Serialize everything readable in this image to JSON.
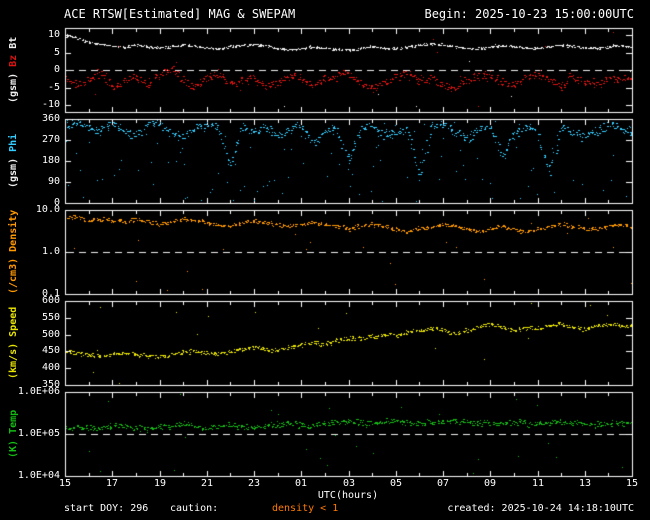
{
  "header": {
    "title": "ACE RTSW[Estimated] MAG & SWEPAM",
    "begin": "Begin: 2025-10-23 15:00:00UTC"
  },
  "footer": {
    "start_doy": "start DOY: 296",
    "caution_label": "caution:",
    "caution_value": "density < 1",
    "caution_color": "#ff7a00",
    "created": "created: 2025-10-24 14:18:10UTC"
  },
  "colors": {
    "background": "#000000",
    "frame": "#ffffff",
    "bt": "#f2f2f2",
    "bz": "#e01212",
    "phi": "#33ccff",
    "density": "#ff9900",
    "speed": "#e8e400",
    "temp": "#14bb14"
  },
  "chart_data": {
    "type": "scatter",
    "title": "ACE RTSW[Estimated] MAG & SWEPAM",
    "begin_utc": "2025-10-23 15:00:00UTC",
    "created_utc": "2025-10-24 14:18:10UTC",
    "start_doy": 296,
    "xlabel": "UTC(hours)",
    "xlim_hours": [
      0,
      24
    ],
    "xtick_labels": [
      "15",
      "17",
      "19",
      "21",
      "23",
      "01",
      "03",
      "05",
      "07",
      "09",
      "11",
      "13",
      "15"
    ],
    "sample_step_hours": 0.5,
    "panels": [
      {
        "id": "mag",
        "scale": "linear",
        "ylim": [
          -12,
          12
        ],
        "yticks": [
          10,
          5,
          0,
          -5,
          -10
        ],
        "ytick_labels": [
          "10",
          "5",
          "0",
          "-5",
          "-10"
        ],
        "dashed_at": 0,
        "label_parts": [
          {
            "text": "Bt",
            "color": "#f2f2f2"
          },
          {
            "text": "Bz",
            "color": "#e01212"
          },
          {
            "text": "(gsm)",
            "color": "#f2f2f2"
          }
        ],
        "series": [
          {
            "name": "Bt",
            "color": "#f2f2f2",
            "spread": 0.5,
            "uniform_noise": 0.02,
            "values": [
              9.8,
              9.2,
              8.0,
              7.2,
              6.8,
              6.5,
              7.0,
              6.6,
              6.2,
              6.6,
              7.1,
              6.7,
              6.2,
              6.0,
              6.5,
              7.0,
              7.2,
              6.8,
              6.1,
              5.7,
              6.0,
              6.6,
              6.2,
              5.8,
              5.6,
              6.1,
              6.6,
              6.2,
              6.0,
              6.5,
              7.0,
              7.4,
              7.0,
              6.6,
              6.1,
              6.0,
              6.5,
              7.0,
              6.6,
              6.2,
              6.1,
              6.6,
              7.1,
              6.7,
              6.4,
              6.1,
              6.6,
              7.0,
              6.5
            ]
          },
          {
            "name": "Bz",
            "color": "#e01212",
            "spread": 1.8,
            "uniform_noise": 0.05,
            "values": [
              -2.0,
              -4.5,
              -3.0,
              -1.0,
              -5.0,
              -3.5,
              -2.0,
              -4.0,
              -1.5,
              0.5,
              -3.0,
              -5.5,
              -2.5,
              -1.0,
              -4.0,
              -3.0,
              -2.0,
              -5.0,
              -3.5,
              -1.5,
              -2.5,
              -4.5,
              -3.0,
              -2.0,
              -1.0,
              -3.5,
              -5.5,
              -4.0,
              -2.0,
              -1.0,
              -3.0,
              -2.5,
              -4.5,
              -5.5,
              -3.0,
              -1.5,
              -2.0,
              -3.5,
              -4.5,
              -2.5,
              -1.0,
              -3.0,
              -5.0,
              -2.0,
              -3.5,
              -4.0,
              -2.5,
              -3.0,
              -2.0
            ]
          }
        ]
      },
      {
        "id": "phi",
        "scale": "linear",
        "ylim": [
          0,
          360
        ],
        "yticks": [
          360,
          270,
          180,
          90,
          0
        ],
        "ytick_labels": [
          "360",
          "270",
          "180",
          "90",
          "0"
        ],
        "dashed_at": null,
        "label_parts": [
          {
            "text": "Phi",
            "color": "#33ccff"
          },
          {
            "text": "(gsm)",
            "color": "#f2f2f2"
          }
        ],
        "series": [
          {
            "name": "Phi",
            "color": "#33ccff",
            "spread": 28,
            "uniform_noise": 0.3,
            "values": [
              330,
              345,
              320,
              300,
              350,
              310,
              290,
              335,
              345,
              300,
              280,
              320,
              340,
              310,
              150,
              330,
              300,
              320,
              290,
              310,
              335,
              250,
              305,
              320,
              180,
              310,
              330,
              290,
              300,
              315,
              95,
              320,
              340,
              300,
              280,
              310,
              330,
              200,
              300,
              320,
              310,
              120,
              330,
              300,
              285,
              310,
              340,
              320,
              300
            ]
          }
        ]
      },
      {
        "id": "density",
        "scale": "log",
        "ylim": [
          0.1,
          10
        ],
        "yticks": [
          10,
          1,
          0.1
        ],
        "ytick_labels": [
          "10.0",
          "1.0",
          "0.1"
        ],
        "dashed_at": 1.0,
        "label_parts": [
          {
            "text": "Density",
            "color": "#ff9900"
          },
          {
            "text": "(/cm3)",
            "color": "#ff9900"
          }
        ],
        "series": [
          {
            "name": "Density",
            "color": "#ff9900",
            "spread": 0.07,
            "uniform_noise": 0.06,
            "values": [
              6.0,
              7.0,
              5.5,
              6.0,
              5.5,
              5.0,
              6.0,
              5.0,
              4.5,
              5.0,
              6.0,
              5.5,
              5.0,
              4.5,
              4.0,
              5.0,
              5.5,
              5.0,
              4.5,
              4.0,
              4.5,
              5.0,
              4.5,
              4.0,
              3.5,
              4.0,
              4.5,
              4.0,
              3.5,
              3.0,
              3.5,
              4.0,
              4.5,
              4.0,
              3.5,
              3.0,
              3.5,
              4.0,
              3.5,
              3.0,
              3.5,
              4.0,
              4.5,
              4.0,
              3.5,
              3.5,
              4.0,
              4.5,
              4.0
            ]
          }
        ]
      },
      {
        "id": "speed",
        "scale": "linear",
        "ylim": [
          350,
          600
        ],
        "yticks": [
          600,
          550,
          500,
          450,
          400,
          350
        ],
        "ytick_labels": [
          "600",
          "550",
          "500",
          "450",
          "400",
          "350"
        ],
        "dashed_at": null,
        "label_parts": [
          {
            "text": "Speed",
            "color": "#e8e400"
          },
          {
            "text": "(km/s)",
            "color": "#e8e400"
          }
        ],
        "series": [
          {
            "name": "Speed",
            "color": "#e8e400",
            "spread": 10,
            "uniform_noise": 0.07,
            "values": [
              450,
              446,
              441,
              436,
              440,
              445,
              441,
              436,
              431,
              440,
              446,
              450,
              446,
              441,
              450,
              455,
              461,
              456,
              450,
              461,
              470,
              476,
              471,
              481,
              490,
              486,
              491,
              500,
              496,
              506,
              511,
              521,
              511,
              501,
              511,
              521,
              531,
              521,
              511,
              521,
              516,
              526,
              531,
              521,
              516,
              526,
              531,
              526,
              521
            ]
          }
        ]
      },
      {
        "id": "temp",
        "scale": "log",
        "ylim": [
          10000,
          1000000
        ],
        "yticks": [
          1000000,
          100000,
          10000
        ],
        "ytick_labels": [
          "1.0E+06",
          "1.0E+05",
          "1.0E+04"
        ],
        "dashed_at": 100000,
        "label_parts": [
          {
            "text": "Temp",
            "color": "#14bb14"
          },
          {
            "text": "(K)",
            "color": "#14bb14"
          }
        ],
        "series": [
          {
            "name": "Temp",
            "color": "#14bb14",
            "spread": 0.11,
            "uniform_noise": 0.07,
            "values": [
              120000,
              150000,
              130000,
              140000,
              160000,
              150000,
              140000,
              130000,
              150000,
              160000,
              170000,
              150000,
              140000,
              150000,
              160000,
              150000,
              140000,
              160000,
              170000,
              180000,
              160000,
              150000,
              170000,
              180000,
              200000,
              180000,
              170000,
              190000,
              200000,
              180000,
              170000,
              180000,
              190000,
              200000,
              190000,
              180000,
              170000,
              180000,
              190000,
              180000,
              170000,
              180000,
              190000,
              180000,
              170000,
              160000,
              170000,
              180000,
              170000
            ]
          }
        ]
      }
    ]
  }
}
